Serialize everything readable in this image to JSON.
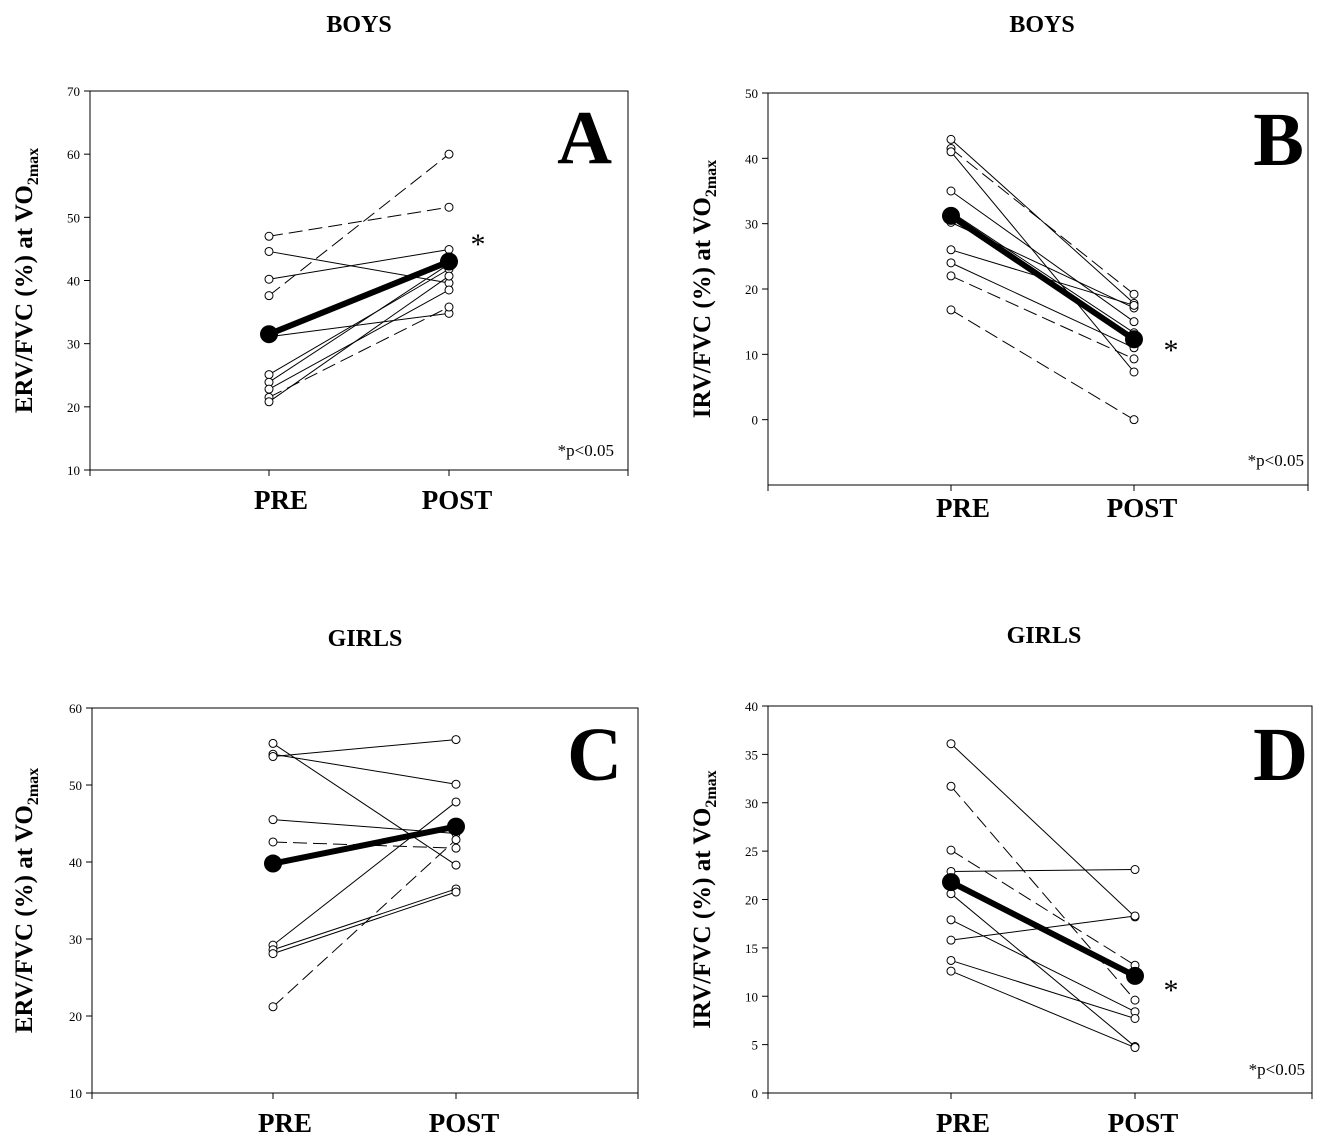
{
  "chart_data": [
    {
      "type": "line",
      "panel": "A",
      "title": "BOYS",
      "ylabel": "ERV/FVC (%) at VO2max",
      "ylabel_main": "ERV/FVC (%) at VO",
      "ylabel_sub": "2max",
      "categories": [
        "PRE",
        "POST"
      ],
      "ylim": [
        10,
        70
      ],
      "yticks": [
        10,
        20,
        30,
        40,
        50,
        60,
        70
      ],
      "grid": false,
      "mean_series": {
        "values": [
          31.5,
          43.0
        ]
      },
      "individual_series": [
        {
          "style": "dashed",
          "values": [
            47.0,
            51.6
          ]
        },
        {
          "style": "dashed",
          "values": [
            37.6,
            60.0
          ]
        },
        {
          "style": "solid",
          "values": [
            44.6,
            39.6
          ]
        },
        {
          "style": "solid",
          "values": [
            40.2,
            44.9
          ]
        },
        {
          "style": "solid",
          "values": [
            31.1,
            34.8
          ]
        },
        {
          "style": "solid",
          "values": [
            25.1,
            41.8
          ]
        },
        {
          "style": "solid",
          "values": [
            23.9,
            42.6
          ]
        },
        {
          "style": "solid",
          "values": [
            22.8,
            38.5
          ]
        },
        {
          "style": "dashed",
          "values": [
            21.5,
            35.8
          ]
        },
        {
          "style": "solid",
          "values": [
            20.8,
            40.7
          ]
        }
      ],
      "significance": "*",
      "note": "*p<0.05"
    },
    {
      "type": "line",
      "panel": "B",
      "title": "BOYS",
      "ylabel": "IRV/FVC (%) at VO2max",
      "ylabel_main": "IRV/FVC (%) at VO",
      "ylabel_sub": "2max",
      "categories": [
        "PRE",
        "POST"
      ],
      "ylim": [
        -10,
        50
      ],
      "yticks": [
        0,
        10,
        20,
        30,
        40,
        50
      ],
      "grid": false,
      "mean_series": {
        "values": [
          31.2,
          12.3
        ]
      },
      "individual_series": [
        {
          "style": "solid",
          "values": [
            42.9,
            17.8
          ]
        },
        {
          "style": "dashed",
          "values": [
            41.5,
            19.2
          ]
        },
        {
          "style": "solid",
          "values": [
            41.0,
            7.3
          ]
        },
        {
          "style": "solid",
          "values": [
            35.0,
            15.0
          ]
        },
        {
          "style": "solid",
          "values": [
            31.8,
            13.3
          ]
        },
        {
          "style": "solid",
          "values": [
            30.2,
            17.1
          ]
        },
        {
          "style": "solid",
          "values": [
            26.0,
            17.5
          ]
        },
        {
          "style": "solid",
          "values": [
            24.0,
            11.0
          ]
        },
        {
          "style": "dashed",
          "values": [
            22.0,
            9.3
          ]
        },
        {
          "style": "dashed",
          "values": [
            16.8,
            0.0
          ]
        }
      ],
      "significance": "*",
      "note": "*p<0.05"
    },
    {
      "type": "line",
      "panel": "C",
      "title": "GIRLS",
      "ylabel": "ERV/FVC (%) at VO2max",
      "ylabel_main": "ERV/FVC (%) at VO",
      "ylabel_sub": "2max",
      "categories": [
        "PRE",
        "POST"
      ],
      "ylim": [
        10,
        60
      ],
      "yticks": [
        10,
        20,
        30,
        40,
        50,
        60
      ],
      "grid": false,
      "mean_series": {
        "values": [
          39.8,
          44.6
        ]
      },
      "individual_series": [
        {
          "style": "solid",
          "values": [
            55.4,
            39.6
          ]
        },
        {
          "style": "solid",
          "values": [
            54.0,
            50.1
          ]
        },
        {
          "style": "solid",
          "values": [
            53.7,
            55.9
          ]
        },
        {
          "style": "solid",
          "values": [
            45.5,
            43.7
          ]
        },
        {
          "style": "dashed",
          "values": [
            42.6,
            41.8
          ]
        },
        {
          "style": "solid",
          "values": [
            29.2,
            47.8
          ]
        },
        {
          "style": "solid",
          "values": [
            28.6,
            36.5
          ]
        },
        {
          "style": "solid",
          "values": [
            28.1,
            36.1
          ]
        },
        {
          "style": "dashed",
          "values": [
            21.2,
            42.9
          ]
        }
      ],
      "significance": "",
      "note": ""
    },
    {
      "type": "line",
      "panel": "D",
      "title": "GIRLS",
      "ylabel": "IRV/FVC (%) at VO2max",
      "ylabel_main": "IRV/FVC (%) at VO",
      "ylabel_sub": "2max",
      "categories": [
        "PRE",
        "POST"
      ],
      "ylim": [
        0,
        40
      ],
      "yticks": [
        0,
        5,
        10,
        15,
        20,
        25,
        30,
        35,
        40
      ],
      "grid": false,
      "mean_series": {
        "values": [
          21.8,
          12.1
        ]
      },
      "individual_series": [
        {
          "style": "solid",
          "values": [
            36.1,
            18.2
          ]
        },
        {
          "style": "dashed",
          "values": [
            31.7,
            9.6
          ]
        },
        {
          "style": "dashed",
          "values": [
            25.1,
            13.2
          ]
        },
        {
          "style": "solid",
          "values": [
            22.9,
            23.1
          ]
        },
        {
          "style": "solid",
          "values": [
            20.6,
            4.8
          ]
        },
        {
          "style": "solid",
          "values": [
            17.9,
            8.4
          ]
        },
        {
          "style": "solid",
          "values": [
            15.8,
            18.3
          ]
        },
        {
          "style": "solid",
          "values": [
            13.7,
            7.7
          ]
        },
        {
          "style": "solid",
          "values": [
            12.6,
            4.7
          ]
        }
      ],
      "significance": "*",
      "note": "*p<0.05"
    }
  ]
}
